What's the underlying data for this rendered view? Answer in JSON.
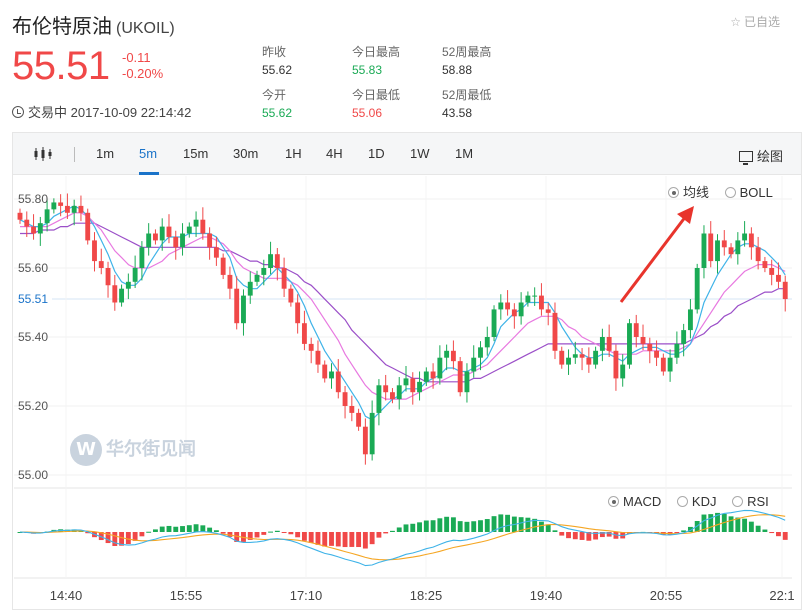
{
  "header": {
    "name": "布伦特原油",
    "symbol": "(UKOIL)",
    "favorite_label": "已自选",
    "price": "55.51",
    "change": "-0.11",
    "change_pct": "-0.20%",
    "status": "交易中 2017-10-09 22:14:42"
  },
  "stats": [
    {
      "label": "昨收",
      "value": "55.62",
      "color": "#333333"
    },
    {
      "label": "今开",
      "value": "55.62",
      "color": "#1aaa55"
    },
    {
      "label": "今日最高",
      "value": "55.83",
      "color": "#1aaa55"
    },
    {
      "label": "今日最低",
      "value": "55.06",
      "color": "#f04848"
    },
    {
      "label": "52周最高",
      "value": "58.88",
      "color": "#333333"
    },
    {
      "label": "52周最低",
      "value": "43.58",
      "color": "#333333"
    }
  ],
  "toolbar": {
    "periods": [
      "1m",
      "5m",
      "15m",
      "30m",
      "1H",
      "4H",
      "1D",
      "1W",
      "1M"
    ],
    "active": "5m",
    "draw_label": "绘图"
  },
  "overlay_options": {
    "items": [
      "均线",
      "BOLL"
    ],
    "selected": "均线"
  },
  "indicator_options": {
    "items": [
      "MACD",
      "KDJ",
      "RSI"
    ],
    "selected": "MACD"
  },
  "watermark": {
    "logo": "W",
    "text": "华尔街见闻"
  },
  "colors": {
    "up": "#1aaa55",
    "down": "#f04848",
    "accent": "#1a73c9",
    "ma_fast": "#3fb3e8",
    "ma_mid": "#e879e0",
    "ma_slow": "#9b4fc8",
    "dif": "#3fb3e8",
    "dea": "#f5a623"
  },
  "chart_data": {
    "type": "candlestick",
    "ylim": [
      55.0,
      55.84
    ],
    "y_ticks": [
      "55.80",
      "55.60",
      "55.40",
      "55.20",
      "55.00"
    ],
    "current_price_label": "55.51",
    "current_price": 55.51,
    "x_ticks": [
      "14:40",
      "15:55",
      "17:10",
      "18:25",
      "19:40",
      "20:55",
      "22:1"
    ],
    "closes": [
      55.74,
      55.72,
      55.7,
      55.73,
      55.77,
      55.79,
      55.78,
      55.76,
      55.78,
      55.76,
      55.68,
      55.62,
      55.6,
      55.55,
      55.5,
      55.54,
      55.56,
      55.6,
      55.66,
      55.7,
      55.68,
      55.72,
      55.69,
      55.66,
      55.7,
      55.72,
      55.74,
      55.7,
      55.66,
      55.63,
      55.58,
      55.54,
      55.44,
      55.52,
      55.56,
      55.58,
      55.6,
      55.64,
      55.6,
      55.54,
      55.5,
      55.44,
      55.38,
      55.36,
      55.32,
      55.28,
      55.3,
      55.24,
      55.2,
      55.18,
      55.14,
      55.06,
      55.18,
      55.26,
      55.24,
      55.22,
      55.26,
      55.28,
      55.24,
      55.27,
      55.3,
      55.28,
      55.34,
      55.36,
      55.33,
      55.24,
      55.3,
      55.34,
      55.37,
      55.4,
      55.48,
      55.5,
      55.48,
      55.46,
      55.5,
      55.52,
      55.52,
      55.48,
      55.47,
      55.36,
      55.32,
      55.34,
      55.35,
      55.34,
      55.32,
      55.36,
      55.4,
      55.36,
      55.28,
      55.32,
      55.44,
      55.4,
      55.38,
      55.36,
      55.34,
      55.3,
      55.34,
      55.38,
      55.42,
      55.48,
      55.6,
      55.7,
      55.62,
      55.68,
      55.66,
      55.64,
      55.68,
      55.7,
      55.66,
      55.62,
      55.6,
      55.58,
      55.56,
      55.51
    ],
    "ma_fast": [
      55.74,
      55.73,
      55.72,
      55.72,
      55.73,
      55.75,
      55.76,
      55.77,
      55.78,
      55.77,
      55.75,
      55.72,
      55.68,
      55.64,
      55.59,
      55.56,
      55.55,
      55.55,
      55.57,
      55.61,
      55.64,
      55.67,
      55.69,
      55.69,
      55.69,
      55.7,
      55.7,
      55.7,
      55.7,
      55.69,
      55.66,
      55.63,
      55.57,
      55.55,
      55.54,
      55.54,
      55.56,
      55.58,
      55.6,
      55.58,
      55.56,
      55.53,
      55.49,
      55.44,
      55.4,
      55.36,
      55.33,
      55.3,
      55.27,
      55.24,
      55.21,
      55.17,
      55.16,
      55.18,
      55.2,
      55.22,
      55.23,
      55.25,
      55.25,
      55.25,
      55.27,
      55.28,
      55.29,
      55.31,
      55.31,
      55.3,
      55.3,
      55.31,
      55.32,
      55.34,
      55.38,
      55.43,
      55.45,
      55.47,
      55.48,
      55.5,
      55.5,
      55.5,
      55.5,
      55.47,
      55.43,
      55.4,
      55.37,
      55.35,
      55.34,
      55.34,
      55.35,
      55.35,
      55.34,
      55.33,
      55.35,
      55.36,
      55.37,
      55.37,
      55.37,
      55.36,
      55.35,
      55.35,
      55.36,
      55.38,
      55.43,
      55.5,
      55.54,
      55.58,
      55.61,
      55.64,
      55.66,
      55.67,
      55.67,
      55.66,
      55.65,
      55.63,
      55.61,
      55.58
    ],
    "ma_mid": [
      55.72,
      55.72,
      55.72,
      55.72,
      55.72,
      55.73,
      55.74,
      55.75,
      55.76,
      55.76,
      55.75,
      55.73,
      55.71,
      55.68,
      55.65,
      55.63,
      55.61,
      55.6,
      55.6,
      55.6,
      55.61,
      55.62,
      55.64,
      55.65,
      55.66,
      55.67,
      55.68,
      55.69,
      55.69,
      55.68,
      55.67,
      55.65,
      55.62,
      55.6,
      55.59,
      55.58,
      55.57,
      55.57,
      55.57,
      55.57,
      55.56,
      55.55,
      55.53,
      55.51,
      55.48,
      55.45,
      55.42,
      55.39,
      55.35,
      55.32,
      55.29,
      55.26,
      55.24,
      55.23,
      55.22,
      55.22,
      55.22,
      55.22,
      55.23,
      55.24,
      55.25,
      55.26,
      55.27,
      55.28,
      55.29,
      55.29,
      55.29,
      55.3,
      55.31,
      55.32,
      55.34,
      55.36,
      55.38,
      55.4,
      55.42,
      55.44,
      55.45,
      55.46,
      55.46,
      55.46,
      55.45,
      55.43,
      55.42,
      55.4,
      55.39,
      55.38,
      55.37,
      55.36,
      55.35,
      55.35,
      55.35,
      55.35,
      55.36,
      55.36,
      55.36,
      55.36,
      55.36,
      55.36,
      55.37,
      55.38,
      55.41,
      55.44,
      55.47,
      55.5,
      55.53,
      55.55,
      55.57,
      55.59,
      55.6,
      55.61,
      55.61,
      55.61,
      55.6,
      55.59
    ],
    "ma_slow": [
      55.7,
      55.7,
      55.7,
      55.71,
      55.71,
      55.71,
      55.72,
      55.72,
      55.73,
      55.73,
      55.73,
      55.73,
      55.72,
      55.71,
      55.7,
      55.69,
      55.68,
      55.67,
      55.66,
      55.66,
      55.66,
      55.66,
      55.66,
      55.66,
      55.66,
      55.66,
      55.66,
      55.66,
      55.66,
      55.66,
      55.65,
      55.65,
      55.64,
      55.63,
      55.62,
      55.62,
      55.61,
      55.61,
      55.6,
      55.6,
      55.59,
      55.58,
      55.56,
      55.55,
      55.53,
      55.51,
      55.49,
      55.47,
      55.45,
      55.42,
      55.4,
      55.38,
      55.36,
      55.34,
      55.32,
      55.31,
      55.3,
      55.29,
      55.28,
      55.28,
      55.27,
      55.27,
      55.27,
      55.27,
      55.27,
      55.27,
      55.27,
      55.28,
      55.28,
      55.29,
      55.3,
      55.31,
      55.32,
      55.33,
      55.34,
      55.35,
      55.36,
      55.37,
      55.38,
      55.38,
      55.38,
      55.38,
      55.38,
      55.38,
      55.38,
      55.38,
      55.38,
      55.38,
      55.38,
      55.38,
      55.38,
      55.38,
      55.38,
      55.38,
      55.38,
      55.38,
      55.38,
      55.38,
      55.38,
      55.39,
      55.4,
      55.41,
      55.43,
      55.44,
      55.46,
      55.47,
      55.49,
      55.5,
      55.51,
      55.52,
      55.53,
      55.53,
      55.54,
      55.54
    ]
  }
}
